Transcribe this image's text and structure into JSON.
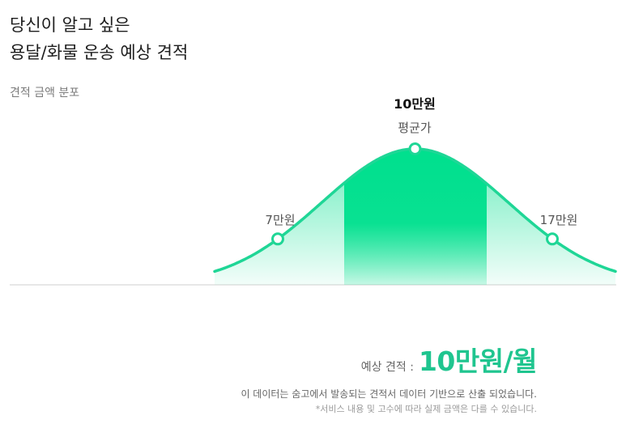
{
  "header": {
    "title_line1": "당신이 알고 싶은",
    "title_line2": "용달/화물 운송 예상 견적",
    "section_label": "견적 금액 분포"
  },
  "chart_data": {
    "type": "area",
    "title": "",
    "xlabel": "",
    "ylabel": "",
    "grid": false,
    "legend": "none",
    "markers": [
      {
        "label": "7만원",
        "value": 7
      },
      {
        "label": "10만원",
        "value": 10,
        "sublabel": "평균가",
        "emphasis": true
      },
      {
        "label": "17만원",
        "value": 17
      }
    ],
    "colors": {
      "curve": "#1fd696",
      "fill": "#00e08e",
      "axis": "#cfcfcf"
    }
  },
  "estimate": {
    "label": "예상 견적 :",
    "value": "10만원/월"
  },
  "notes": {
    "line1": "이 데이터는 숨고에서 발송되는 견적서 데이터 기반으로 산출 되었습니다.",
    "line2": "*서비스 내용 및 고수에 따라 실제 금액은 다를 수 있습니다."
  }
}
